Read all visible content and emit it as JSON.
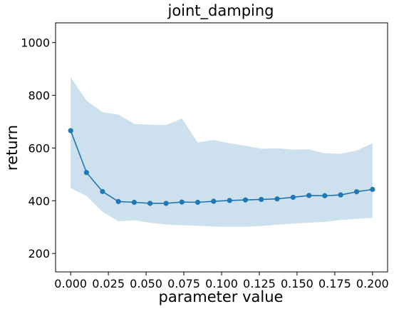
{
  "chart_data": {
    "type": "line",
    "title": "joint_damping",
    "xlabel": "parameter value",
    "ylabel": "return",
    "xlim": [
      -0.01,
      0.21
    ],
    "ylim": [
      130,
      1075
    ],
    "x_ticks": [
      0.0,
      0.025,
      0.05,
      0.075,
      0.1,
      0.125,
      0.15,
      0.175,
      0.2
    ],
    "x_tick_labels": [
      "0.000",
      "0.025",
      "0.050",
      "0.075",
      "0.100",
      "0.125",
      "0.150",
      "0.175",
      "0.200"
    ],
    "y_ticks": [
      200,
      400,
      600,
      800,
      1000
    ],
    "y_tick_labels": [
      "200",
      "400",
      "600",
      "800",
      "1000"
    ],
    "grid": false,
    "legend": "none",
    "line_color": "#1f77b4",
    "band_color": "#cde0ee",
    "x": [
      0.0,
      0.0105,
      0.0211,
      0.0316,
      0.0421,
      0.0526,
      0.0632,
      0.0737,
      0.0842,
      0.0947,
      0.1053,
      0.1158,
      0.1263,
      0.1368,
      0.1474,
      0.1579,
      0.1684,
      0.1789,
      0.1895,
      0.2
    ],
    "series": [
      {
        "values": [
          666,
          507,
          435,
          397,
          394,
          390,
          390,
          395,
          394,
          398,
          401,
          403,
          405,
          407,
          413,
          420,
          419,
          422,
          434,
          443
        ],
        "upper": [
          868,
          780,
          736,
          727,
          692,
          688,
          687,
          712,
          621,
          631,
          618,
          609,
          597,
          599,
          594,
          595,
          580,
          578,
          591,
          618
        ],
        "lower": [
          448,
          418,
          358,
          322,
          326,
          316,
          310,
          307,
          305,
          302,
          301,
          301,
          304,
          309,
          313,
          317,
          320,
          327,
          331,
          335
        ]
      }
    ]
  }
}
